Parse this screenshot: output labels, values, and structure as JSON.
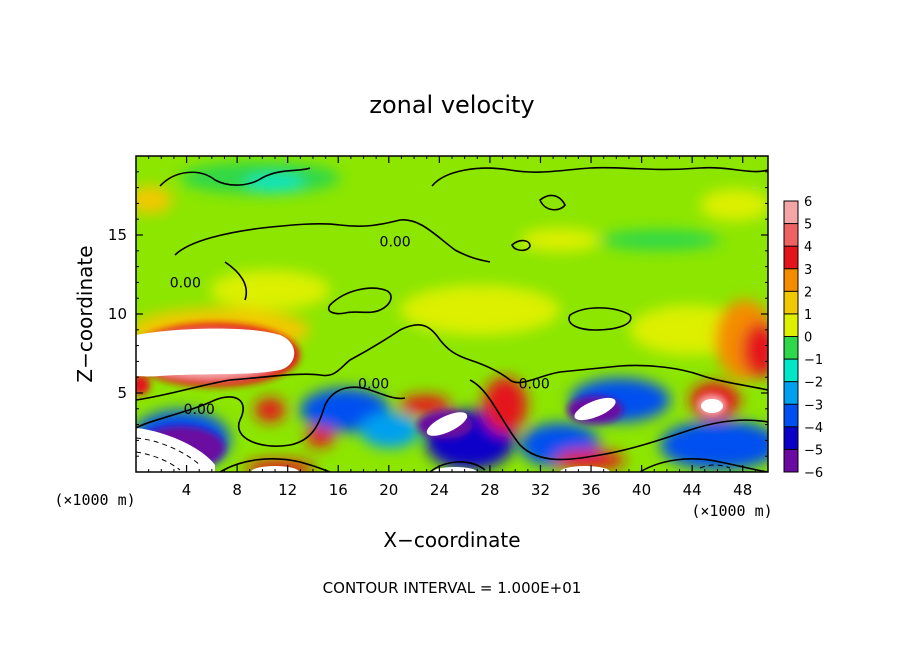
{
  "chart_data": {
    "type": "heatmap",
    "title": "zonal velocity",
    "xlabel": "X−coordinate",
    "ylabel": "Z−coordinate",
    "x_unit_note": "(×1000 m)",
    "z_unit_note": "(×1000 m)",
    "xlim": [
      0,
      50
    ],
    "ylim": [
      0,
      20
    ],
    "x_ticks": [
      4,
      8,
      12,
      16,
      20,
      24,
      28,
      32,
      36,
      40,
      44,
      48
    ],
    "y_ticks": [
      5,
      10,
      15
    ],
    "colorbar": {
      "min": -6,
      "max": 6,
      "ticks": [
        6,
        5,
        4,
        3,
        2,
        1,
        0,
        -1,
        -2,
        -3,
        -4,
        -5,
        -6
      ],
      "colors": {
        "6": "#f4a5a5",
        "5": "#ee6262",
        "4": "#e4141c",
        "3": "#f48c00",
        "2": "#f2c800",
        "1": "#dcf000",
        "0": "#8ce600",
        "-1": "#2ed84a",
        "-2": "#00e6c8",
        "-3": "#00a0f0",
        "-4": "#0050f0",
        "-5": "#0a00c8",
        "-6": "#6a0aa0"
      }
    },
    "contour_labels": [
      {
        "text": "0.00",
        "x": 20.5,
        "z": 14.6
      },
      {
        "text": "0.00",
        "x": 3.9,
        "z": 12.0
      },
      {
        "text": "0.00",
        "x": 18.8,
        "z": 5.6
      },
      {
        "text": "0.00",
        "x": 31.5,
        "z": 5.6
      },
      {
        "text": "0.00",
        "x": 5.0,
        "z": 4.0
      }
    ],
    "footer": "CONTOUR INTERVAL = 1.000E+01"
  }
}
